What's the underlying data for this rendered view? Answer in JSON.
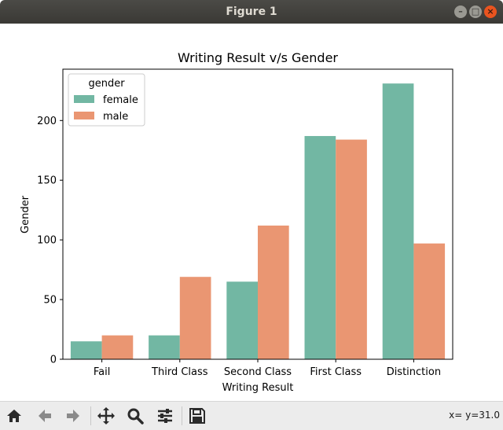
{
  "window": {
    "title": "Figure 1"
  },
  "toolbar": {
    "buttons": [
      "home-icon",
      "back-icon",
      "forward-icon",
      "pan-icon",
      "zoom-icon",
      "configure-icon",
      "save-icon"
    ],
    "coordinates": "x= y=31.0"
  },
  "chart_data": {
    "type": "bar",
    "title": "Writing Result v/s Gender",
    "xlabel": "Writing Result",
    "ylabel": "Gender",
    "categories": [
      "Fail",
      "Third Class",
      "Second Class",
      "First Class",
      "Distinction"
    ],
    "series": [
      {
        "name": "female",
        "color": "#72b7a3",
        "values": [
          15,
          20,
          65,
          187,
          231
        ]
      },
      {
        "name": "male",
        "color": "#ea9672",
        "values": [
          20,
          69,
          112,
          184,
          97
        ]
      }
    ],
    "ylim": [
      0,
      243
    ],
    "yticks": [
      0,
      50,
      100,
      150,
      200
    ],
    "legend": {
      "title": "gender",
      "position": "upper-left"
    },
    "grid": false
  }
}
